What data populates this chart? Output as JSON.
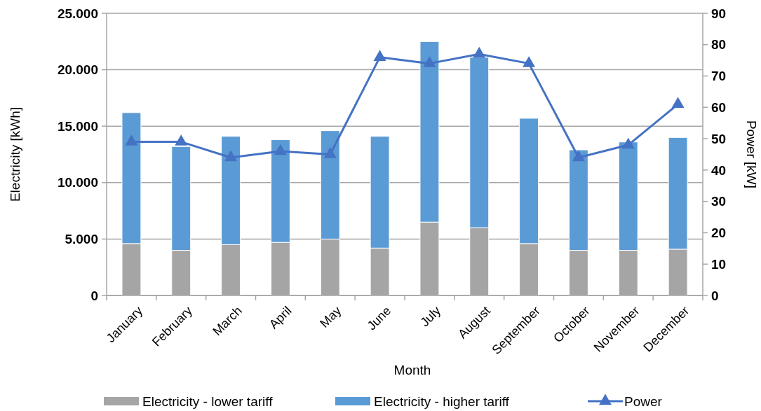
{
  "chart_data": {
    "type": "bar",
    "stacked": true,
    "xlabel": "Month",
    "ylabel": "Electricity [kWh]",
    "y2label": "Power [kW]",
    "categories": [
      "January",
      "February",
      "March",
      "April",
      "May",
      "June",
      "July",
      "August",
      "September",
      "October",
      "November",
      "December"
    ],
    "series": [
      {
        "name": "Electricity - lower tariff",
        "color": "#a5a5a5",
        "values": [
          4600,
          4000,
          4500,
          4700,
          5000,
          4200,
          6500,
          6000,
          4600,
          4000,
          4000,
          4100
        ]
      },
      {
        "name": "Electricity - higher tariff",
        "color": "#5b9bd5",
        "values": [
          11600,
          9200,
          9600,
          9100,
          9600,
          9900,
          16000,
          15100,
          11100,
          8900,
          9600,
          9900
        ]
      },
      {
        "name": "Power",
        "type": "line",
        "axis": "y2",
        "color": "#4472c4",
        "marker": "triangle",
        "line_style": "solid",
        "values": [
          49,
          49,
          44,
          46,
          45,
          76,
          74,
          77,
          74,
          44,
          48,
          61
        ]
      }
    ],
    "ylim": [
      0,
      25000
    ],
    "yticks": [
      {
        "value": 0,
        "label": "0"
      },
      {
        "value": 5000,
        "label": "5.000"
      },
      {
        "value": 10000,
        "label": "10.000"
      },
      {
        "value": 15000,
        "label": "15.000"
      },
      {
        "value": 20000,
        "label": "20.000"
      },
      {
        "value": 25000,
        "label": "25.000"
      }
    ],
    "y2lim": [
      0,
      90
    ],
    "y2ticks": [
      0,
      10,
      20,
      30,
      40,
      50,
      60,
      70,
      80,
      90
    ],
    "grid": "y",
    "legend": "bottom"
  }
}
